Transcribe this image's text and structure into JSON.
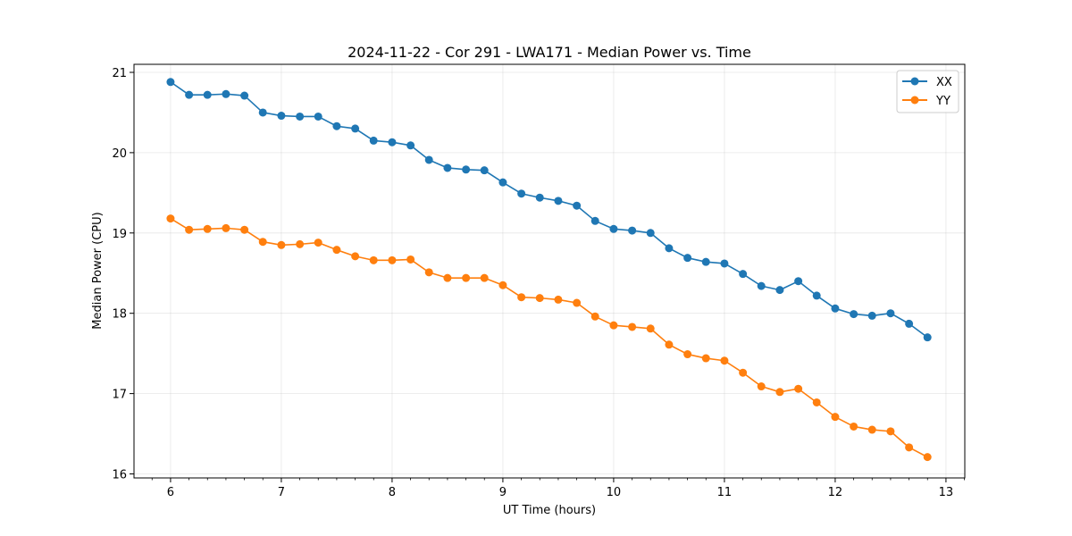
{
  "chart_data": {
    "type": "line",
    "title": "2024-11-22 - Cor 291 - LWA171 - Median Power vs. Time",
    "xlabel": "UT Time (hours)",
    "ylabel": "Median Power (CPU)",
    "xlim": [
      5.67,
      13.17
    ],
    "ylim": [
      15.95,
      21.1
    ],
    "xticks": [
      6,
      7,
      8,
      9,
      10,
      11,
      12,
      13
    ],
    "yticks": [
      16,
      17,
      18,
      19,
      20,
      21
    ],
    "grid": true,
    "legend_position": "top-right",
    "x": [
      6.0,
      6.167,
      6.333,
      6.5,
      6.667,
      6.833,
      7.0,
      7.167,
      7.333,
      7.5,
      7.667,
      7.833,
      8.0,
      8.167,
      8.333,
      8.5,
      8.667,
      8.833,
      9.0,
      9.167,
      9.333,
      9.5,
      9.667,
      9.833,
      10.0,
      10.167,
      10.333,
      10.5,
      10.667,
      10.833,
      11.0,
      11.167,
      11.333,
      11.5,
      11.667,
      11.833,
      12.0,
      12.167,
      12.333,
      12.5,
      12.667,
      12.833
    ],
    "series": [
      {
        "name": "XX",
        "color": "#1f77b4",
        "values": [
          20.88,
          20.72,
          20.72,
          20.73,
          20.71,
          20.5,
          20.46,
          20.45,
          20.45,
          20.33,
          20.3,
          20.15,
          20.13,
          20.09,
          19.91,
          19.81,
          19.79,
          19.78,
          19.63,
          19.49,
          19.44,
          19.4,
          19.34,
          19.15,
          19.05,
          19.03,
          19.0,
          18.81,
          18.69,
          18.64,
          18.62,
          18.49,
          18.34,
          18.29,
          18.4,
          18.22,
          18.06,
          17.99,
          17.97,
          18.0,
          17.87,
          17.7
        ]
      },
      {
        "name": "YY",
        "color": "#ff7f0e",
        "values": [
          19.18,
          19.04,
          19.05,
          19.06,
          19.04,
          18.89,
          18.85,
          18.86,
          18.88,
          18.79,
          18.71,
          18.66,
          18.66,
          18.67,
          18.51,
          18.44,
          18.44,
          18.44,
          18.35,
          18.2,
          18.19,
          18.17,
          18.13,
          17.96,
          17.85,
          17.83,
          17.81,
          17.61,
          17.49,
          17.44,
          17.41,
          17.26,
          17.09,
          17.02,
          17.06,
          16.89,
          16.71,
          16.59,
          16.55,
          16.53,
          16.33,
          16.21
        ]
      }
    ]
  }
}
